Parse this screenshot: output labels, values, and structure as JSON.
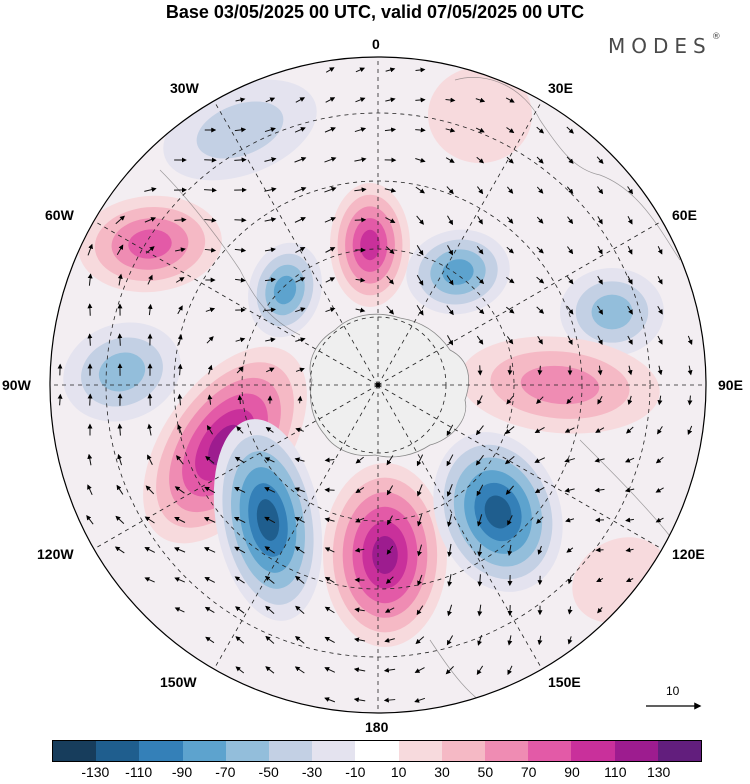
{
  "title": "Base 03/05/2025 00 UTC, valid 07/05/2025 00 UTC",
  "brand": "MODES",
  "brand_mark": "®",
  "longitude_labels": {
    "l0": "0",
    "l30e": "30E",
    "l60e": "60E",
    "l90e": "90E",
    "l120e": "120E",
    "l150e": "150E",
    "l180": "180",
    "l150w": "150W",
    "l120w": "120W",
    "l90w": "90W",
    "l60w": "60W",
    "l30w": "30W"
  },
  "vector_reference": {
    "label": "10"
  },
  "colorbar": {
    "colors": [
      "#173d5c",
      "#1f5e8e",
      "#3480b8",
      "#5da3ce",
      "#93bedb",
      "#c3d0e4",
      "#e4e3ef",
      "#ffffff",
      "#f7dadd",
      "#f5b9c5",
      "#ef8cb3",
      "#e35aa7",
      "#c9309b",
      "#9d1c8f",
      "#621e7d"
    ],
    "tick_labels": [
      "-130",
      "-110",
      "-90",
      "-70",
      "-50",
      "-30",
      "-10",
      "10",
      "30",
      "50",
      "70",
      "90",
      "110",
      "130"
    ]
  },
  "map_legend": {
    "projection": "south polar stereographic",
    "shading": "anomaly field",
    "vectors": "wind",
    "center_color": "#efefef"
  }
}
